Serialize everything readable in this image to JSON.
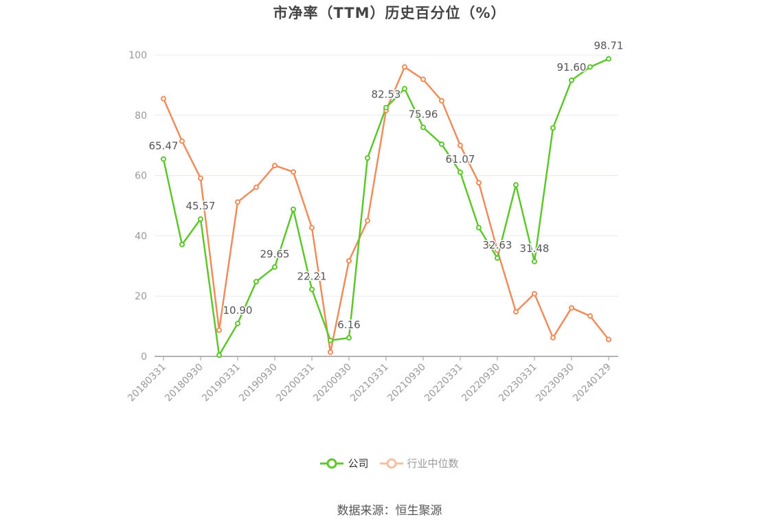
{
  "chart_data": {
    "type": "line",
    "title": "市净率（TTM）历史百分位（%）",
    "xlabel": "",
    "ylabel": "",
    "ylim": [
      0,
      100
    ],
    "yticks": [
      0,
      20,
      40,
      60,
      80,
      100
    ],
    "grid": true,
    "legend_position": "bottom",
    "x": [
      "20180331",
      "20180630",
      "20180930",
      "20181231",
      "20190331",
      "20190630",
      "20190930",
      "20191231",
      "20200331",
      "20200630",
      "20200930",
      "20201231",
      "20210331",
      "20210630",
      "20210930",
      "20211231",
      "20220331",
      "20220630",
      "20220930",
      "20221231",
      "20230331",
      "20230630",
      "20230930",
      "20231231",
      "20240129"
    ],
    "x_tick_labels": [
      "20180331",
      "20180930",
      "20190331",
      "20190930",
      "20200331",
      "20200930",
      "20210331",
      "20210930",
      "20220331",
      "20220930",
      "20230331",
      "20230930",
      "20240129"
    ],
    "series": [
      {
        "name": "公司",
        "color": "#5cc72a",
        "values": [
          65.47,
          37.1,
          45.57,
          0.4,
          10.9,
          24.8,
          29.65,
          48.8,
          22.21,
          5.3,
          6.16,
          65.8,
          82.53,
          88.8,
          75.96,
          70.4,
          61.07,
          42.7,
          32.63,
          56.9,
          31.48,
          75.8,
          91.6,
          96.0,
          98.71
        ],
        "labels": [
          "65.47",
          null,
          "45.57",
          null,
          "10.90",
          null,
          "29.65",
          null,
          "22.21",
          null,
          "6.16",
          null,
          "82.53",
          null,
          "75.96",
          null,
          "61.07",
          null,
          "32.63",
          null,
          "31.48",
          null,
          "91.60",
          null,
          "98.71"
        ]
      },
      {
        "name": "行业中位数",
        "color": "#f08c5a",
        "values": [
          85.5,
          71.4,
          59.1,
          8.7,
          51.2,
          56.1,
          63.3,
          61.2,
          42.7,
          1.4,
          31.7,
          45.0,
          81.6,
          96.0,
          91.9,
          84.8,
          70.0,
          57.6,
          35.2,
          14.8,
          20.8,
          6.2,
          16.1,
          13.4,
          5.6
        ]
      }
    ]
  },
  "legend": {
    "items": [
      {
        "label": "公司",
        "color": "#5cc72a",
        "active": true
      },
      {
        "label": "行业中位数",
        "color": "#f6bfa2",
        "active": false
      }
    ]
  },
  "source": "数据来源：恒生聚源"
}
